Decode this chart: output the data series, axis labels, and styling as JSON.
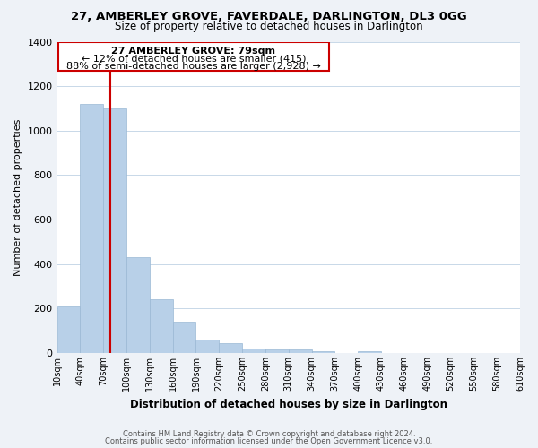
{
  "title1": "27, AMBERLEY GROVE, FAVERDALE, DARLINGTON, DL3 0GG",
  "title2": "Size of property relative to detached houses in Darlington",
  "xlabel": "Distribution of detached houses by size in Darlington",
  "ylabel": "Number of detached properties",
  "bar_color": "#b8d0e8",
  "bar_edge_color": "#9ab8d4",
  "bin_edges": [
    10,
    40,
    70,
    100,
    130,
    160,
    190,
    220,
    250,
    280,
    310,
    340,
    370,
    400,
    430,
    460,
    490,
    520,
    550,
    580,
    610
  ],
  "bar_heights": [
    210,
    1120,
    1100,
    430,
    240,
    140,
    60,
    45,
    22,
    18,
    16,
    10,
    0,
    8,
    0,
    0,
    0,
    0,
    0,
    0
  ],
  "red_line_x": 79,
  "ylim": [
    0,
    1400
  ],
  "yticks": [
    0,
    200,
    400,
    600,
    800,
    1000,
    1200,
    1400
  ],
  "xtick_labels": [
    "10sqm",
    "40sqm",
    "70sqm",
    "100sqm",
    "130sqm",
    "160sqm",
    "190sqm",
    "220sqm",
    "250sqm",
    "280sqm",
    "310sqm",
    "340sqm",
    "370sqm",
    "400sqm",
    "430sqm",
    "460sqm",
    "490sqm",
    "520sqm",
    "550sqm",
    "580sqm",
    "610sqm"
  ],
  "annotation_title": "27 AMBERLEY GROVE: 79sqm",
  "annotation_line1": "← 12% of detached houses are smaller (415)",
  "annotation_line2": "88% of semi-detached houses are larger (2,928) →",
  "box_edge_color": "#cc0000",
  "footer1": "Contains HM Land Registry data © Crown copyright and database right 2024.",
  "footer2": "Contains public sector information licensed under the Open Government Licence v3.0.",
  "bg_color": "#eef2f7",
  "plot_bg_color": "#ffffff",
  "grid_color": "#c8d8e8"
}
